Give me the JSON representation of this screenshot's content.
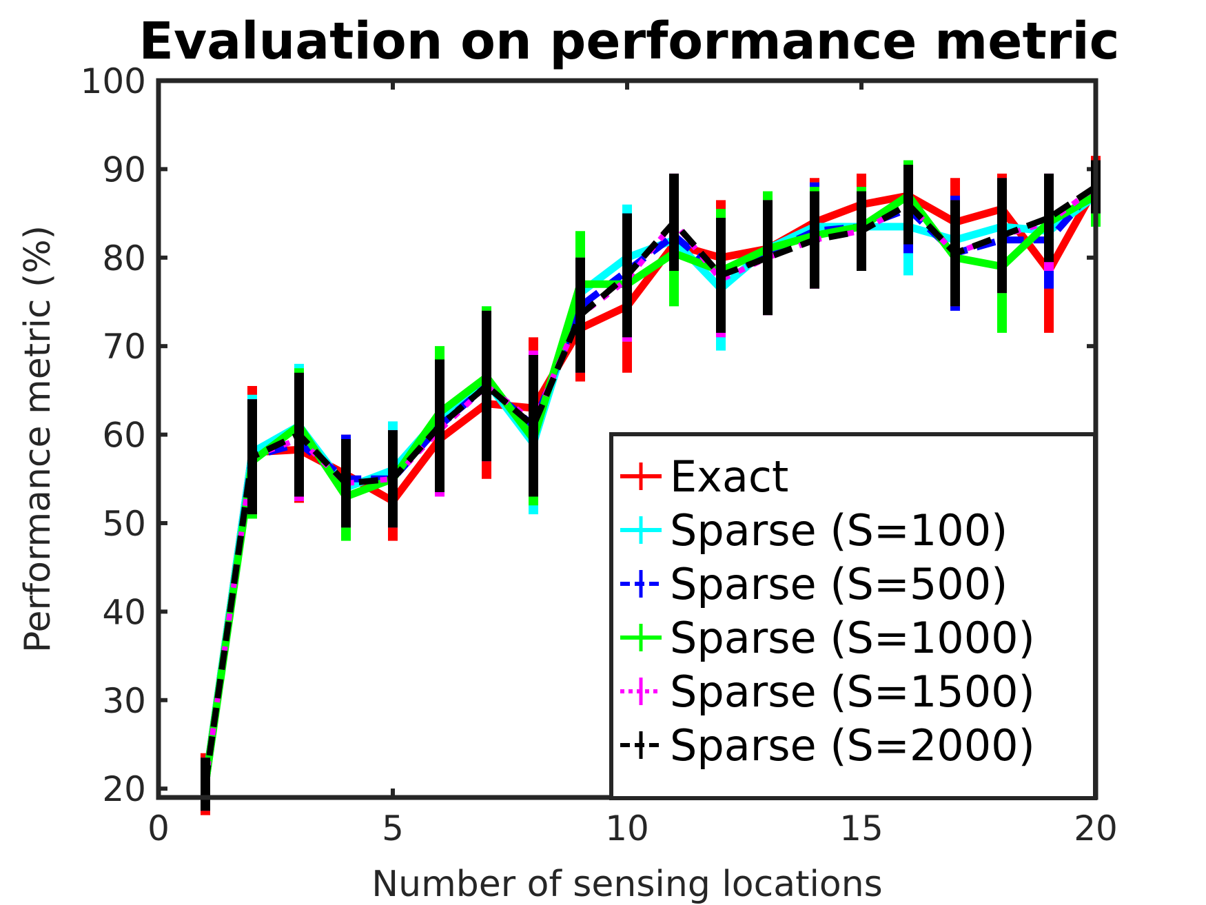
{
  "chart_data": {
    "type": "line",
    "title": "Evaluation on performance metric",
    "xlabel": "Number of sensing locations",
    "ylabel": "Performance metric (%)",
    "xlim": [
      0,
      20
    ],
    "ylim": [
      19,
      100
    ],
    "xticks": [
      0,
      5,
      10,
      15,
      20
    ],
    "yticks": [
      20,
      30,
      40,
      50,
      60,
      70,
      80,
      90,
      100
    ],
    "grid": false,
    "legend_position": "bottom-right",
    "x": [
      1,
      2,
      3,
      4,
      5,
      6,
      7,
      8,
      9,
      10,
      11,
      12,
      13,
      14,
      15,
      16,
      17,
      18,
      19,
      20
    ],
    "series": [
      {
        "name": "Exact",
        "color": "#ff0000",
        "dash": "solid",
        "values": [
          20.5,
          58.0,
          58.3,
          55.5,
          52.5,
          59.5,
          63.5,
          63.0,
          72.0,
          74.5,
          81.5,
          80.0,
          81.0,
          84.0,
          86.0,
          87.0,
          84.0,
          85.5,
          78.5,
          88.0
        ],
        "errors": [
          3.5,
          7.5,
          6.0,
          4.5,
          4.5,
          6.5,
          8.5,
          8.0,
          6.0,
          7.5,
          6.0,
          6.5,
          6.5,
          5.0,
          3.5,
          3.5,
          5.0,
          4.0,
          7.0,
          3.5
        ]
      },
      {
        "name": "Sparse (S=100)",
        "color": "#00ffff",
        "dash": "solid",
        "values": [
          20.5,
          58.0,
          61.0,
          54.0,
          56.0,
          62.0,
          66.0,
          59.0,
          76.0,
          80.0,
          82.0,
          76.5,
          81.0,
          83.5,
          83.5,
          83.5,
          82.0,
          83.5,
          83.0,
          87.0
        ],
        "errors": [
          3.0,
          6.5,
          7.0,
          5.5,
          5.5,
          7.5,
          8.5,
          8.0,
          6.5,
          6.0,
          5.0,
          7.0,
          6.5,
          5.0,
          4.5,
          5.5,
          4.5,
          5.0,
          5.5,
          3.5
        ]
      },
      {
        "name": "Sparse (S=500)",
        "color": "#0000ff",
        "dash": "dashed",
        "values": [
          20.5,
          57.5,
          59.0,
          55.0,
          55.0,
          61.0,
          65.5,
          61.0,
          74.5,
          78.5,
          82.5,
          78.0,
          80.5,
          83.0,
          83.5,
          85.5,
          80.5,
          82.0,
          82.0,
          88.0
        ],
        "errors": [
          3.0,
          6.5,
          6.5,
          5.0,
          5.5,
          7.5,
          8.5,
          8.0,
          6.5,
          6.5,
          5.0,
          6.5,
          6.5,
          5.5,
          4.5,
          5.0,
          6.5,
          5.5,
          5.5,
          3.0
        ]
      },
      {
        "name": "Sparse (S=1000)",
        "color": "#00ff00",
        "dash": "solid",
        "values": [
          20.5,
          57.0,
          61.0,
          53.0,
          55.0,
          62.5,
          66.5,
          59.5,
          77.0,
          77.0,
          80.5,
          78.5,
          81.0,
          82.5,
          83.5,
          87.0,
          80.0,
          79.0,
          84.0,
          87.0
        ],
        "errors": [
          3.0,
          6.5,
          6.5,
          5.0,
          5.5,
          7.5,
          8.0,
          7.5,
          6.0,
          6.5,
          6.0,
          7.0,
          6.5,
          5.5,
          4.5,
          4.0,
          5.5,
          7.5,
          5.0,
          3.5
        ]
      },
      {
        "name": "Sparse (S=1500)",
        "color": "#ff00ff",
        "dash": "dotted",
        "values": [
          20.5,
          57.5,
          59.5,
          54.5,
          55.0,
          60.5,
          65.5,
          61.5,
          73.5,
          77.5,
          84.0,
          77.5,
          80.0,
          82.0,
          83.0,
          86.0,
          80.5,
          82.5,
          84.0,
          88.0
        ],
        "errors": [
          3.0,
          6.5,
          7.0,
          5.0,
          5.5,
          7.5,
          8.5,
          8.0,
          6.5,
          7.0,
          5.5,
          6.5,
          6.5,
          5.5,
          4.5,
          4.5,
          6.0,
          6.5,
          5.5,
          3.0
        ]
      },
      {
        "name": "Sparse (S=2000)",
        "color": "#000000",
        "dash": "dashed",
        "values": [
          20.5,
          57.5,
          60.0,
          54.5,
          55.0,
          61.0,
          65.5,
          61.0,
          73.5,
          78.0,
          84.0,
          78.0,
          80.0,
          82.0,
          83.0,
          86.0,
          80.5,
          82.5,
          84.5,
          88.0
        ],
        "errors": [
          3.0,
          6.5,
          7.0,
          5.0,
          5.5,
          7.5,
          8.5,
          8.0,
          6.5,
          7.0,
          5.5,
          6.5,
          6.5,
          5.5,
          4.5,
          4.5,
          6.0,
          6.5,
          5.0,
          3.0
        ]
      }
    ]
  }
}
